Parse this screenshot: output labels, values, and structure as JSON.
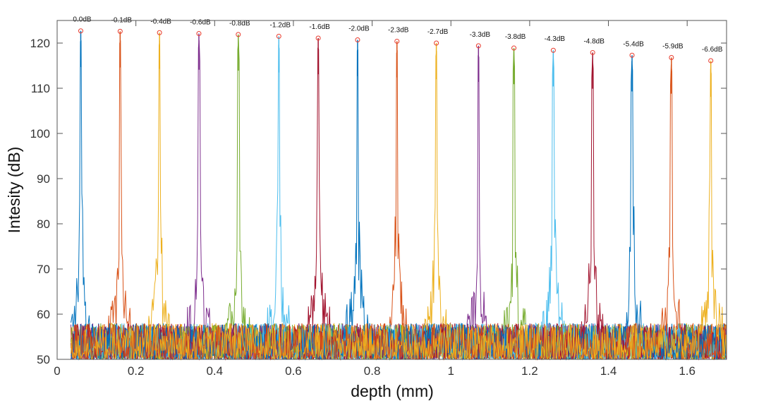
{
  "chart_data": {
    "type": "line",
    "title": "",
    "xlabel": "depth (mm)",
    "ylabel": "Intesity (dB)",
    "xlim": [
      0,
      1.7
    ],
    "ylim": [
      50,
      125
    ],
    "xticks": [
      0,
      0.2,
      0.4,
      0.6,
      0.8,
      1,
      1.2,
      1.4,
      1.6
    ],
    "xtick_labels": [
      "0",
      "0.2",
      "0.4",
      "0.6",
      "0.8",
      "1",
      "1.2",
      "1.4",
      "1.6"
    ],
    "yticks": [
      50,
      60,
      70,
      80,
      90,
      100,
      110,
      120
    ],
    "ytick_labels": [
      "50",
      "60",
      "70",
      "80",
      "90",
      "100",
      "110",
      "120"
    ],
    "grid": false,
    "noise_floor_db": [
      50,
      60
    ],
    "series": [
      {
        "name": "peak 1",
        "color": "#0072BD",
        "peak_x": 0.06,
        "peak_y": 122.7,
        "label": "0.0dB"
      },
      {
        "name": "peak 2",
        "color": "#D95319",
        "peak_x": 0.16,
        "peak_y": 122.6,
        "label": "-0.1dB"
      },
      {
        "name": "peak 3",
        "color": "#EDB120",
        "peak_x": 0.26,
        "peak_y": 122.3,
        "label": "-0.4dB"
      },
      {
        "name": "peak 4",
        "color": "#7E2F8E",
        "peak_x": 0.36,
        "peak_y": 122.1,
        "label": "-0.6dB"
      },
      {
        "name": "peak 5",
        "color": "#77AC30",
        "peak_x": 0.46,
        "peak_y": 121.9,
        "label": "-0.8dB"
      },
      {
        "name": "peak 6",
        "color": "#4DBEEE",
        "peak_x": 0.563,
        "peak_y": 121.5,
        "label": "-1.2dB"
      },
      {
        "name": "peak 7",
        "color": "#A2142F",
        "peak_x": 0.663,
        "peak_y": 121.1,
        "label": "-1.6dB"
      },
      {
        "name": "peak 8",
        "color": "#0072BD",
        "peak_x": 0.763,
        "peak_y": 120.7,
        "label": "-2.0dB"
      },
      {
        "name": "peak 9",
        "color": "#D95319",
        "peak_x": 0.863,
        "peak_y": 120.4,
        "label": "-2.3dB"
      },
      {
        "name": "peak 10",
        "color": "#EDB120",
        "peak_x": 0.963,
        "peak_y": 120.0,
        "label": "-2.7dB"
      },
      {
        "name": "peak 11",
        "color": "#7E2F8E",
        "peak_x": 1.07,
        "peak_y": 119.4,
        "label": "-3.3dB"
      },
      {
        "name": "peak 12",
        "color": "#77AC30",
        "peak_x": 1.16,
        "peak_y": 118.9,
        "label": "-3.8dB"
      },
      {
        "name": "peak 13",
        "color": "#4DBEEE",
        "peak_x": 1.26,
        "peak_y": 118.4,
        "label": "-4.3dB"
      },
      {
        "name": "peak 14",
        "color": "#A2142F",
        "peak_x": 1.36,
        "peak_y": 117.9,
        "label": "-4.8dB"
      },
      {
        "name": "peak 15",
        "color": "#0072BD",
        "peak_x": 1.46,
        "peak_y": 117.3,
        "label": "-5.4dB"
      },
      {
        "name": "peak 16",
        "color": "#D95319",
        "peak_x": 1.56,
        "peak_y": 116.8,
        "label": "-5.9dB"
      },
      {
        "name": "peak 17",
        "color": "#EDB120",
        "peak_x": 1.66,
        "peak_y": 116.1,
        "label": "-6.6dB"
      }
    ],
    "marker_color": "#E8392B"
  }
}
